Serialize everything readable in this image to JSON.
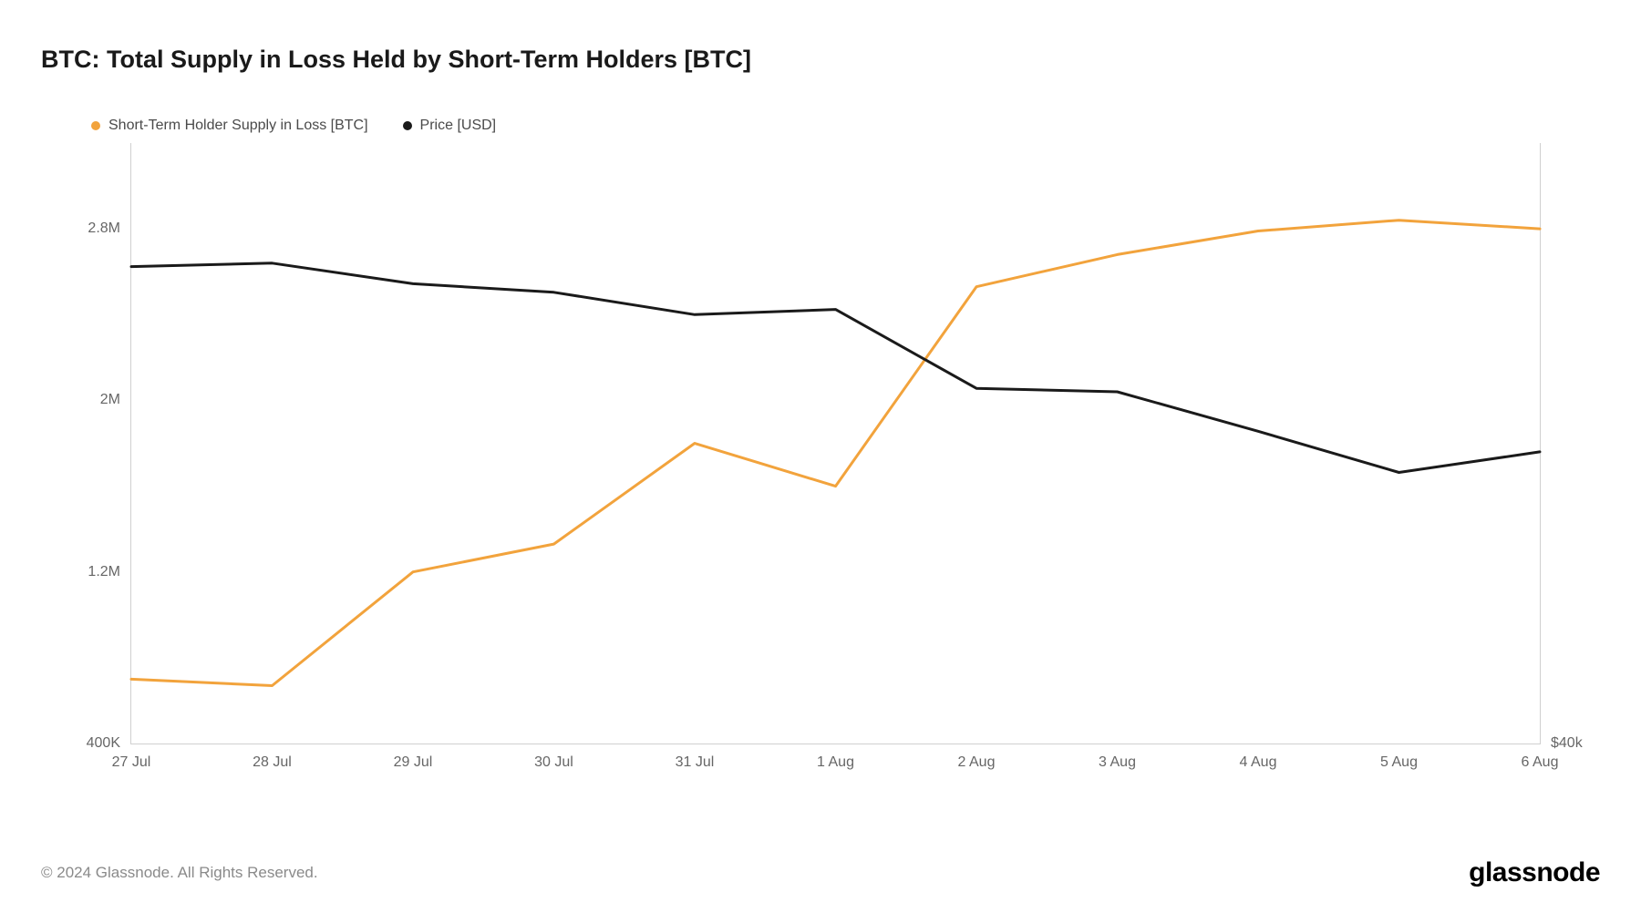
{
  "title": "BTC: Total Supply in Loss Held by Short-Term Holders [BTC]",
  "legend": {
    "series1": {
      "label": "Short-Term Holder Supply in Loss [BTC]",
      "color": "#f2a33c"
    },
    "series2": {
      "label": "Price [USD]",
      "color": "#1a1a1a"
    }
  },
  "chart": {
    "type": "line",
    "background_color": "#ffffff",
    "border_color": "#d0d0d0",
    "line_width": 3,
    "x_categories": [
      "27 Jul",
      "28 Jul",
      "29 Jul",
      "30 Jul",
      "31 Jul",
      "1 Aug",
      "2 Aug",
      "3 Aug",
      "4 Aug",
      "5 Aug",
      "6 Aug"
    ],
    "y_left": {
      "min": 400000,
      "max": 3200000,
      "ticks": [
        {
          "value": 400000,
          "label": "400K"
        },
        {
          "value": 1200000,
          "label": "1.2M"
        },
        {
          "value": 2000000,
          "label": "2M"
        },
        {
          "value": 2800000,
          "label": "2.8M"
        }
      ]
    },
    "y_right": {
      "min": 40000,
      "max": 75000,
      "ticks": [
        {
          "value": 40000,
          "label": "$40k"
        }
      ]
    },
    "series1_values": [
      700000,
      670000,
      1200000,
      1330000,
      1800000,
      1600000,
      2530000,
      2680000,
      2790000,
      2840000,
      2800000
    ],
    "series2_values": [
      67800,
      68000,
      66800,
      66300,
      65000,
      65300,
      60700,
      60500,
      58200,
      55800,
      57000
    ]
  },
  "footer": {
    "copyright": "© 2024 Glassnode. All Rights Reserved.",
    "brand": "glassnode"
  }
}
